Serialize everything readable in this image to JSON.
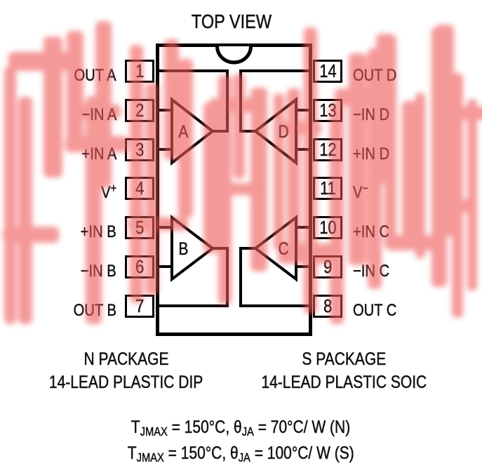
{
  "title": "TOP VIEW",
  "pins": {
    "left": [
      {
        "num": "1",
        "label": "OUT A"
      },
      {
        "num": "2",
        "label": "−IN A"
      },
      {
        "num": "3",
        "label": "+IN A"
      },
      {
        "num": "4",
        "label": "V",
        "sup": "+"
      },
      {
        "num": "5",
        "label": "+IN B"
      },
      {
        "num": "6",
        "label": "−IN B"
      },
      {
        "num": "7",
        "label": "OUT B"
      }
    ],
    "right": [
      {
        "num": "14",
        "label": "OUT D"
      },
      {
        "num": "13",
        "label": "−IN D"
      },
      {
        "num": "12",
        "label": "+IN D"
      },
      {
        "num": "11",
        "label": "V",
        "sup": "−"
      },
      {
        "num": "10",
        "label": "+IN C"
      },
      {
        "num": "9",
        "label": "−IN C"
      },
      {
        "num": "8",
        "label": "OUT C"
      }
    ]
  },
  "amplifiers": [
    "A",
    "B",
    "C",
    "D"
  ],
  "packages": [
    {
      "name": "N PACKAGE",
      "description": "14-LEAD PLASTIC DIP"
    },
    {
      "name": "S PACKAGE",
      "description": "14-LEAD PLASTIC SOIC"
    }
  ],
  "thermal_notes": [
    {
      "t1": "T",
      "s1": "JMAX",
      "t2": " = 150°C, θ",
      "s2": "JA",
      "t3": " = 70°C/ W (N)"
    },
    {
      "t1": "T",
      "s1": "JMAX",
      "t2": " = 150°C, θ",
      "s2": "JA",
      "t3": " = 100°C/ W (S)"
    }
  ],
  "watermark": {
    "color": "#ef5a5a",
    "legible_text": "电子",
    "style": "blurred red chinese-character stripes"
  }
}
